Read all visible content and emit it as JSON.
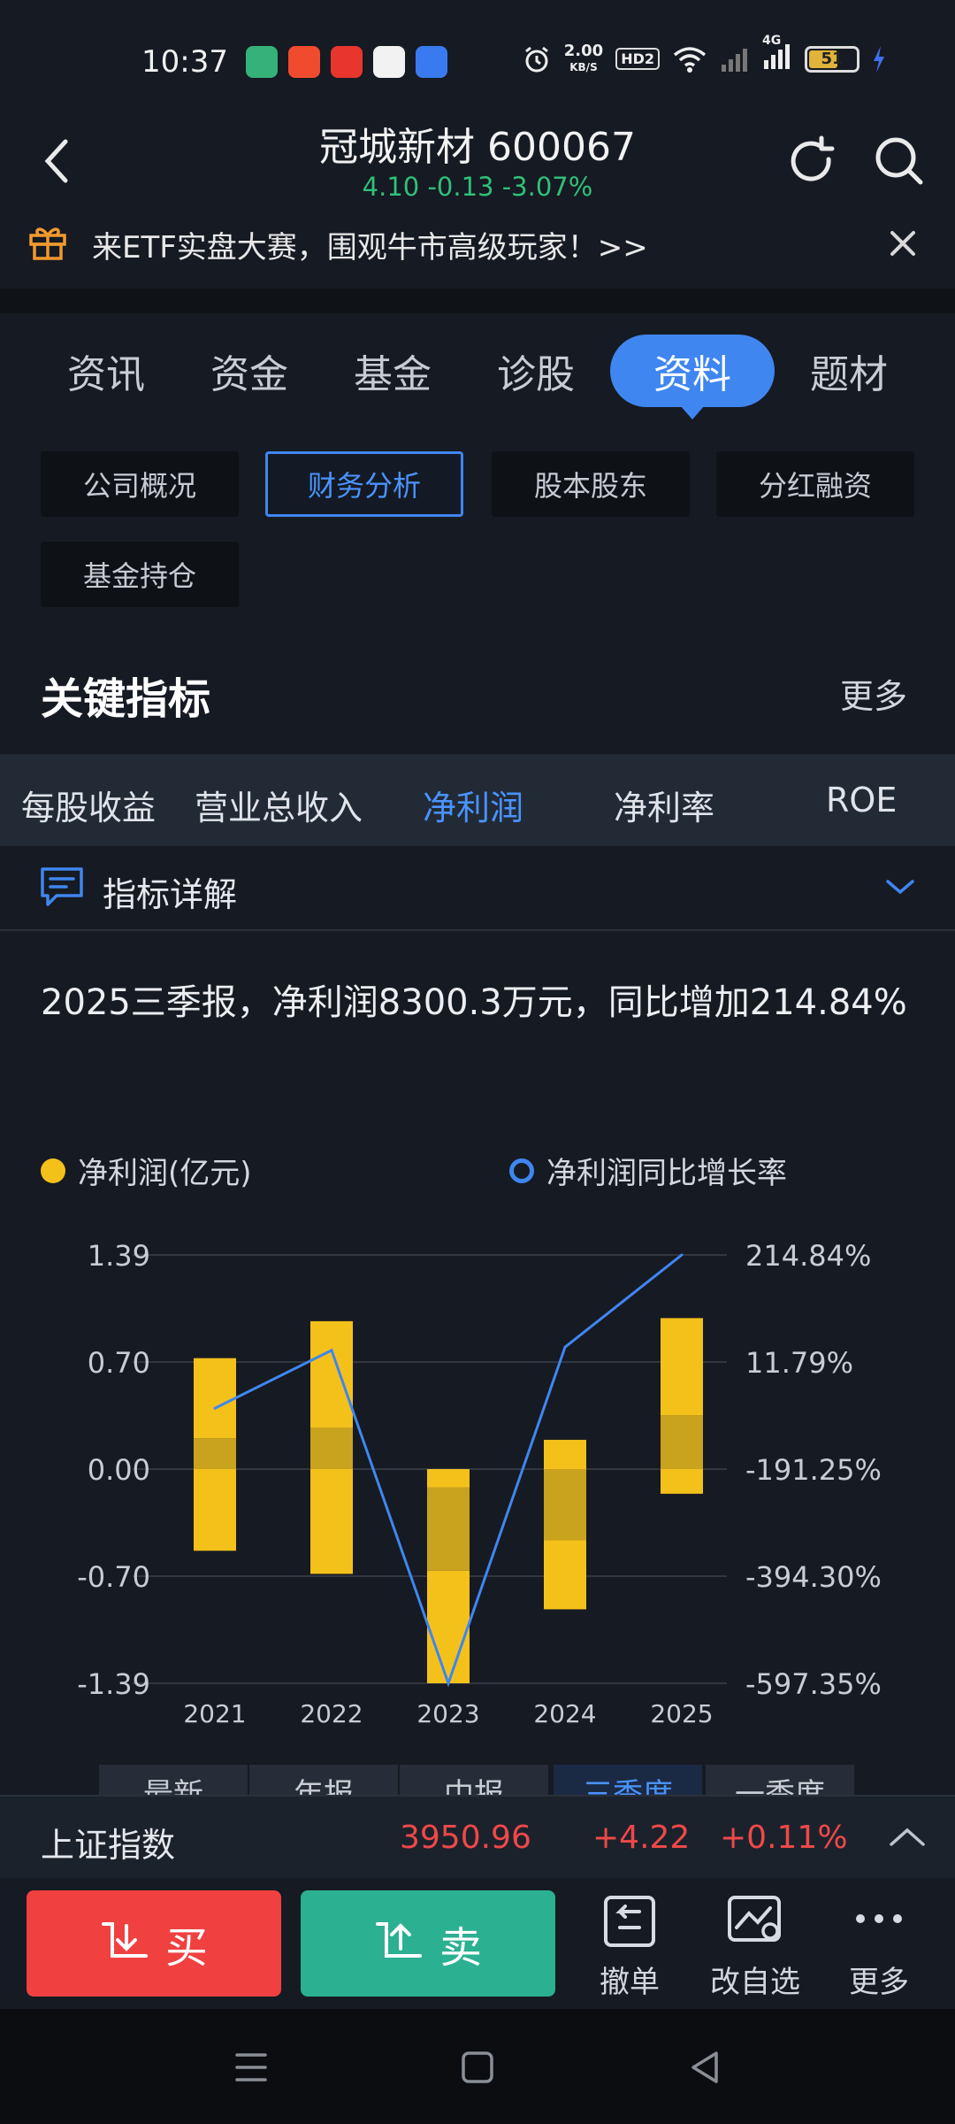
{
  "status_bar": {
    "time": "10:37",
    "net_speed_value": "2.00",
    "net_speed_unit": "KB/S",
    "hd_badge": "HD2",
    "signal_label": "4G",
    "battery": "51",
    "app_icon_colors": [
      "#35b27a",
      "#f04b2f",
      "#e8352d",
      "#f2f2f2",
      "#3a7af0"
    ]
  },
  "header": {
    "title": "冠城新材 600067",
    "quote": "4.10 -0.13 -3.07%",
    "quote_color": "#2fc07a"
  },
  "banner": {
    "text": "来ETF实盘大赛，围观牛市高级玩家！>>"
  },
  "main_tabs": [
    {
      "label": "资讯"
    },
    {
      "label": "资金"
    },
    {
      "label": "基金"
    },
    {
      "label": "诊股"
    },
    {
      "label": "资料",
      "active": true
    },
    {
      "label": "题材"
    }
  ],
  "sub_tabs": [
    {
      "label": "公司概况"
    },
    {
      "label": "财务分析",
      "active": true
    },
    {
      "label": "股本股东"
    },
    {
      "label": "分红融资"
    },
    {
      "label": "基金持仓"
    }
  ],
  "section": {
    "title": "关键指标",
    "more": "更多"
  },
  "metric_tabs": [
    {
      "label": "每股收益"
    },
    {
      "label": "营业总收入"
    },
    {
      "label": "净利润",
      "active": true
    },
    {
      "label": "净利率"
    },
    {
      "label": "ROE"
    }
  ],
  "explain": {
    "label": "指标详解"
  },
  "summary": "2025三季报，净利润8300.3万元，同比增加214.84%",
  "chart_data": {
    "type": "bar",
    "legend": [
      {
        "name": "净利润(亿元)",
        "color": "#f4c11b"
      },
      {
        "name": "净利润同比增长率",
        "color": "#3f86f0"
      }
    ],
    "categories": [
      "2021",
      "2022",
      "2023",
      "2024",
      "2025"
    ],
    "left_axis": {
      "ticks": [
        "1.39",
        "0.70",
        "0.00",
        "-0.70",
        "-1.39"
      ],
      "range": [
        -1.39,
        1.39
      ]
    },
    "right_axis": {
      "ticks": [
        "214.84%",
        "11.79%",
        "-191.25%",
        "-394.30%",
        "-597.35%"
      ],
      "range": [
        -597.35,
        214.84
      ]
    },
    "bar_segments": [
      [
        {
          "from": -0.53,
          "to": 0.0
        },
        {
          "from": 0.0,
          "to": 0.2,
          "shade": "dark"
        },
        {
          "from": 0.2,
          "to": 0.72
        }
      ],
      [
        {
          "from": -0.68,
          "to": 0.0
        },
        {
          "from": 0.0,
          "to": 0.27,
          "shade": "dark"
        },
        {
          "from": 0.27,
          "to": 0.96
        }
      ],
      [
        {
          "from": -1.39,
          "to": -0.66
        },
        {
          "from": -0.66,
          "to": -0.12,
          "shade": "dark"
        },
        {
          "from": -0.12,
          "to": 0.0
        }
      ],
      [
        {
          "from": -0.91,
          "to": -0.46
        },
        {
          "from": -0.46,
          "to": 0.0,
          "shade": "dark"
        },
        {
          "from": 0.0,
          "to": 0.19
        }
      ],
      [
        {
          "from": -0.16,
          "to": 0.0
        },
        {
          "from": 0.0,
          "to": 0.35,
          "shade": "dark"
        },
        {
          "from": 0.35,
          "to": 0.98
        }
      ]
    ],
    "growth_rate": [
      -76,
      34,
      -597.35,
      40,
      214.84
    ],
    "bar_color": "#f4c11b",
    "bar_dark_color": "#c9a21e",
    "line_color": "#3f86f0"
  },
  "period_tabs": [
    {
      "label": "最新"
    },
    {
      "label": "年报"
    },
    {
      "label": "中报"
    },
    {
      "label": "三季度",
      "active": true
    },
    {
      "label": "一季度"
    }
  ],
  "index_bar": {
    "name": "上证指数",
    "value": "3950.96",
    "change": "+4.22",
    "pct": "+0.11%",
    "color": "#f04848"
  },
  "actions": {
    "buy": "买",
    "sell": "卖",
    "cancel": "撤单",
    "watchlist": "改自选",
    "more": "更多"
  }
}
